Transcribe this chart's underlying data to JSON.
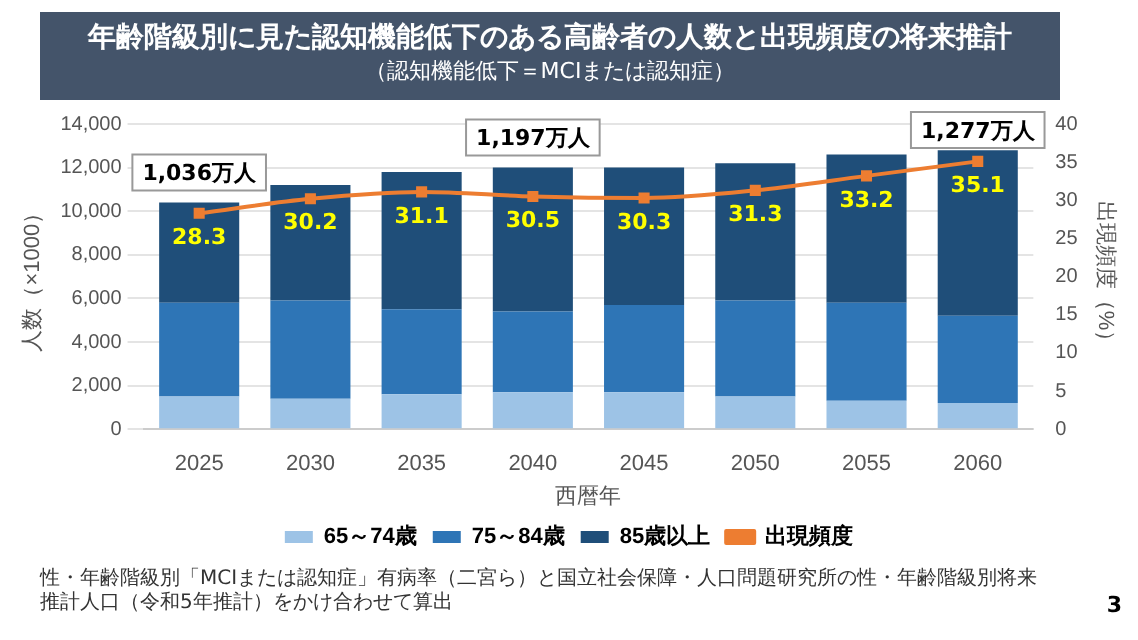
{
  "chart_data": {
    "type": "bar",
    "title": "年齢階級別に見た認知機能低下のある高齢者の人数と出現頻度の将来推計",
    "subtitle": "（認知機能低下＝MCIまたは認知症）",
    "xlabel": "西暦年",
    "ylabel": "人数（×1000）",
    "y2label": "出現頻度（%）",
    "stacked": true,
    "categories": [
      "2025",
      "2030",
      "2035",
      "2040",
      "2045",
      "2050",
      "2055",
      "2060"
    ],
    "series": [
      {
        "name": "65～74歳",
        "color": "#9dc3e6",
        "values": [
          1500,
          1400,
          1600,
          1700,
          1700,
          1500,
          1300,
          1200
        ]
      },
      {
        "name": "75～84歳",
        "color": "#2e75b6",
        "values": [
          4300,
          4500,
          3900,
          3700,
          4000,
          4400,
          4500,
          4000
        ]
      },
      {
        "name": "85歳以上",
        "color": "#1f4e79",
        "values": [
          4600,
          5300,
          6300,
          6600,
          6300,
          6300,
          6800,
          7600
        ]
      },
      {
        "name": "出現頻度",
        "type": "line",
        "axis": "y2",
        "color": "#ed7d31",
        "marker": "square",
        "values": [
          28.3,
          30.2,
          31.1,
          30.5,
          30.3,
          31.3,
          33.2,
          35.1
        ],
        "data_labels": true
      }
    ],
    "ylim": [
      0,
      14000
    ],
    "yticks": [
      {
        "value": 0,
        "label": "0"
      },
      {
        "value": 2000,
        "label": "2,000"
      },
      {
        "value": 4000,
        "label": "4,000"
      },
      {
        "value": 6000,
        "label": "6,000"
      },
      {
        "value": 8000,
        "label": "8,000"
      },
      {
        "value": 10000,
        "label": "10,000"
      },
      {
        "value": 12000,
        "label": "12,000"
      },
      {
        "value": 14000,
        "label": "14,000"
      }
    ],
    "y2lim": [
      0,
      40
    ],
    "y2ticks": [
      0,
      5,
      10,
      15,
      20,
      25,
      30,
      35,
      40
    ],
    "grid": "y",
    "legend": "bottom",
    "annotations": [
      {
        "text": "1,036万人",
        "x": "2025",
        "y": 10400
      },
      {
        "text": "1,197万人",
        "x": "2040",
        "y": 12000
      },
      {
        "text": "1,277万人",
        "x": "2060",
        "y": 12800
      },
      "性・年齢階級別「MCIまたは認知症」有病率（二宮ら）と国立社会保障・人口問題研究所の性・年齢階級別将来推計人口（令和5年推計）をかけ合わせて算出",
      "3"
    ]
  }
}
